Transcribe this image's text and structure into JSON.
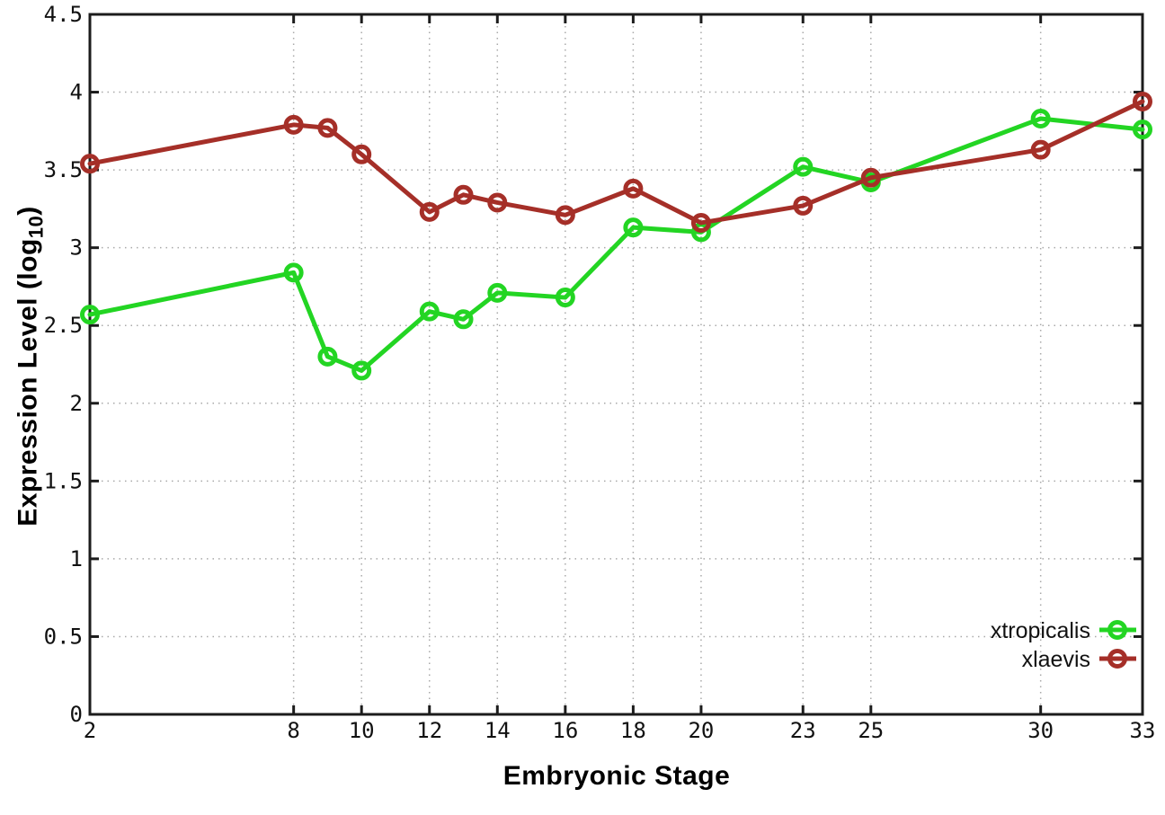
{
  "figure": {
    "background": "#ffffff",
    "axis_color": "#1c1c1c",
    "grid_color": "#a9a9a9",
    "tick_label_color": "#111111"
  },
  "chart_data": {
    "type": "line",
    "title": "",
    "xlabel": "Embryonic Stage",
    "ylabel": "Expression Level (log10)",
    "ylabel_parts": {
      "pre": "Expression Level (log",
      "sub": "10",
      "post": ")"
    },
    "x": [
      2,
      8,
      9,
      10,
      12,
      13,
      14,
      16,
      18,
      20,
      23,
      25,
      30,
      33
    ],
    "xticks": [
      2,
      8,
      10,
      12,
      14,
      16,
      18,
      20,
      23,
      25,
      30,
      33
    ],
    "yticks": [
      0,
      0.5,
      1,
      1.5,
      2,
      2.5,
      3,
      3.5,
      4,
      4.5
    ],
    "xlim": [
      2,
      33
    ],
    "ylim": [
      0,
      4.5
    ],
    "grid": true,
    "legend_position": "bottom-right",
    "series": [
      {
        "name": "xtropicalis",
        "color": "#23d523",
        "values": [
          2.57,
          2.84,
          2.3,
          2.21,
          2.59,
          2.54,
          2.71,
          2.68,
          3.13,
          3.1,
          3.52,
          3.42,
          3.83,
          3.76
        ]
      },
      {
        "name": "xlaevis",
        "color": "#a52f28",
        "values": [
          3.54,
          3.79,
          3.77,
          3.6,
          3.23,
          3.34,
          3.29,
          3.21,
          3.38,
          3.16,
          3.27,
          3.45,
          3.63,
          3.94
        ]
      }
    ]
  }
}
